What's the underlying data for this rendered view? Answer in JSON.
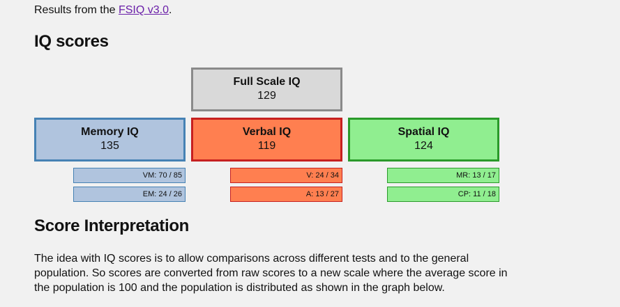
{
  "intro": {
    "prefix": "Results from the ",
    "link_text": "FSIQ v3.0",
    "suffix": "."
  },
  "iq_section": {
    "title": "IQ scores",
    "full_scale": {
      "name": "Full Scale IQ",
      "score": "129"
    },
    "memory": {
      "name": "Memory IQ",
      "score": "135",
      "subscores": [
        "VM: 70 / 85",
        "EM: 24 / 26"
      ]
    },
    "verbal": {
      "name": "Verbal IQ",
      "score": "119",
      "subscores": [
        "V: 24 / 34",
        "A: 13 / 27"
      ]
    },
    "spatial": {
      "name": "Spatial IQ",
      "score": "124",
      "subscores": [
        "MR: 13 / 17",
        "CP: 11 / 18"
      ]
    }
  },
  "interpretation": {
    "title": "Score Interpretation",
    "text": "The idea with IQ scores is to allow comparisons across different tests and to the general population. So scores are converted from raw scores to a new scale where the average score in the population is 100 and the population is distributed as shown in the graph below."
  },
  "colors": {
    "full_scale": "#d9d9d9",
    "memory": "#b0c4de",
    "verbal": "#ff7f50",
    "spatial": "#90ee90",
    "link": "#6a1fa8"
  }
}
